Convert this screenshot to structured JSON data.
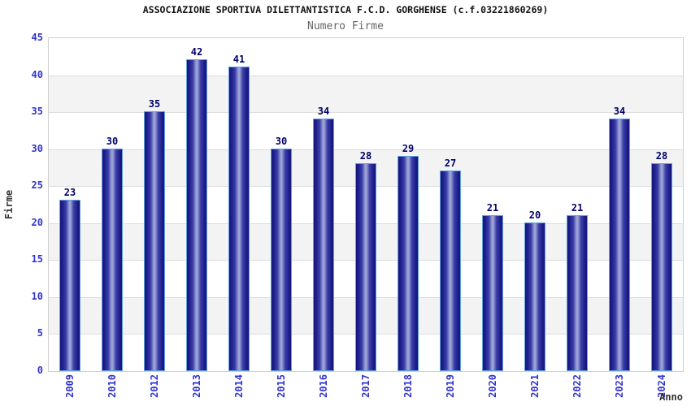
{
  "header": {
    "title": "ASSOCIAZIONE SPORTIVA DILETTANTISTICA F.C.D. GORGHENSE (c.f.03221860269)",
    "subtitle": "Numero Firme"
  },
  "chart_data": {
    "type": "bar",
    "title": "ASSOCIAZIONE SPORTIVA DILETTANTISTICA F.C.D. GORGHENSE (c.f.03221860269)",
    "subtitle": "Numero Firme",
    "categories": [
      "2009",
      "2010",
      "2012",
      "2013",
      "2014",
      "2015",
      "2016",
      "2017",
      "2018",
      "2019",
      "2020",
      "2021",
      "2022",
      "2023",
      "2024"
    ],
    "values": [
      23,
      30,
      35,
      42,
      41,
      30,
      34,
      28,
      29,
      27,
      21,
      20,
      21,
      34,
      28
    ],
    "xlabel": "Anno",
    "ylabel": "Firme",
    "ylim": [
      0,
      45
    ],
    "ytick_step": 5,
    "grid": "horizontal-bands",
    "legend": "none",
    "bar_value_labels": true
  },
  "colors": {
    "bar_edge": "#15157b",
    "bar_center": "#9aa2d6",
    "bar_outline": "#64a0dd",
    "value_label": "#00006b",
    "axis_tick_label": "#3333cc",
    "band_fill": "#f3f3f3",
    "grid_line": "#dcdcdc",
    "plot_border": "#d0d0d0",
    "title_text": "#111111",
    "subtitle_text": "#666666",
    "axis_title_text": "#333333"
  }
}
